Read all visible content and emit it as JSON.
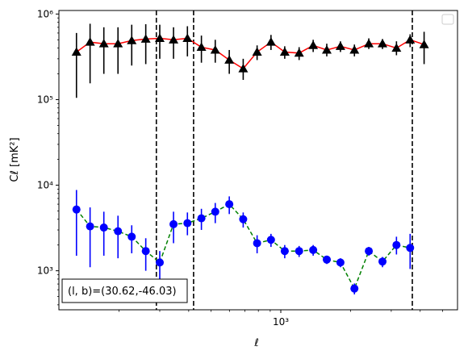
{
  "chart_data": {
    "type": "scatter",
    "title": "",
    "xlabel": "ℓ",
    "ylabel": "Cℓ  [mK²]",
    "xscale": "log",
    "yscale": "log",
    "xlim": [
      110,
      5800
    ],
    "ylim": [
      350,
      1100000
    ],
    "x_tick_labels": [
      {
        "value": 1000,
        "label": "10³"
      }
    ],
    "y_tick_labels": [
      {
        "value": 1000,
        "label": "10³"
      },
      {
        "value": 10000,
        "label": "10⁴"
      },
      {
        "value": 100000,
        "label": "10⁵"
      },
      {
        "value": 1000000,
        "label": "10⁶"
      }
    ],
    "x_minor_ticks": [
      200,
      300,
      400,
      500,
      600,
      700,
      800,
      900,
      2000,
      3000,
      4000,
      5000
    ],
    "vertical_lines": [
      290,
      420,
      3700
    ],
    "legend": {
      "placement": "top-right",
      "entries": []
    },
    "annotation": "(l, b)=(30.62,-46.03)",
    "series": [
      {
        "marker": "triangle",
        "marker_color": "#000000",
        "line_color": "#ff0000",
        "line_style": "solid",
        "points": [
          {
            "x": 131,
            "y": 360000,
            "yerr_low": 105000,
            "yerr_high": 600000
          },
          {
            "x": 150,
            "y": 470000,
            "yerr_low": 155000,
            "yerr_high": 770000
          },
          {
            "x": 172,
            "y": 450000,
            "yerr_low": 200000,
            "yerr_high": 700000
          },
          {
            "x": 198,
            "y": 450000,
            "yerr_low": 200000,
            "yerr_high": 700000
          },
          {
            "x": 227,
            "y": 490000,
            "yerr_low": 250000,
            "yerr_high": 750000
          },
          {
            "x": 261,
            "y": 510000,
            "yerr_low": 260000,
            "yerr_high": 760000
          },
          {
            "x": 300,
            "y": 520000,
            "yerr_low": 300000,
            "yerr_high": 750000
          },
          {
            "x": 344,
            "y": 500000,
            "yerr_low": 300000,
            "yerr_high": 700000
          },
          {
            "x": 395,
            "y": 520000,
            "yerr_low": 320000,
            "yerr_high": 720000
          },
          {
            "x": 454,
            "y": 410000,
            "yerr_low": 270000,
            "yerr_high": 560000
          },
          {
            "x": 521,
            "y": 380000,
            "yerr_low": 270000,
            "yerr_high": 500000
          },
          {
            "x": 599,
            "y": 290000,
            "yerr_low": 200000,
            "yerr_high": 380000
          },
          {
            "x": 688,
            "y": 230000,
            "yerr_low": 170000,
            "yerr_high": 300000
          },
          {
            "x": 790,
            "y": 360000,
            "yerr_low": 290000,
            "yerr_high": 430000
          },
          {
            "x": 907,
            "y": 470000,
            "yerr_low": 380000,
            "yerr_high": 570000
          },
          {
            "x": 1040,
            "y": 360000,
            "yerr_low": 300000,
            "yerr_high": 420000
          },
          {
            "x": 1200,
            "y": 350000,
            "yerr_low": 290000,
            "yerr_high": 410000
          },
          {
            "x": 1380,
            "y": 430000,
            "yerr_low": 360000,
            "yerr_high": 500000
          },
          {
            "x": 1580,
            "y": 380000,
            "yerr_low": 320000,
            "yerr_high": 450000
          },
          {
            "x": 1810,
            "y": 420000,
            "yerr_low": 360000,
            "yerr_high": 480000
          },
          {
            "x": 2080,
            "y": 380000,
            "yerr_low": 320000,
            "yerr_high": 440000
          },
          {
            "x": 2400,
            "y": 450000,
            "yerr_low": 390000,
            "yerr_high": 520000
          },
          {
            "x": 2750,
            "y": 450000,
            "yerr_low": 390000,
            "yerr_high": 510000
          },
          {
            "x": 3160,
            "y": 400000,
            "yerr_low": 330000,
            "yerr_high": 480000
          },
          {
            "x": 3620,
            "y": 500000,
            "yerr_low": 410000,
            "yerr_high": 580000
          },
          {
            "x": 4160,
            "y": 440000,
            "yerr_low": 260000,
            "yerr_high": 620000
          }
        ]
      },
      {
        "marker": "circle",
        "marker_color": "#0000ff",
        "line_color": "#008000",
        "line_style": "dashed",
        "points": [
          {
            "x": 131,
            "y": 5200,
            "yerr_low": 1500,
            "yerr_high": 8800
          },
          {
            "x": 150,
            "y": 3300,
            "yerr_low": 1100,
            "yerr_high": 5500
          },
          {
            "x": 172,
            "y": 3200,
            "yerr_low": 1500,
            "yerr_high": 4900
          },
          {
            "x": 198,
            "y": 2900,
            "yerr_low": 1400,
            "yerr_high": 4400
          },
          {
            "x": 227,
            "y": 2500,
            "yerr_low": 1600,
            "yerr_high": 3400
          },
          {
            "x": 261,
            "y": 1700,
            "yerr_low": 1000,
            "yerr_high": 2400
          },
          {
            "x": 300,
            "y": 1250,
            "yerr_low": 800,
            "yerr_high": 1700
          },
          {
            "x": 344,
            "y": 3500,
            "yerr_low": 2100,
            "yerr_high": 4900
          },
          {
            "x": 395,
            "y": 3600,
            "yerr_low": 2600,
            "yerr_high": 4800
          },
          {
            "x": 454,
            "y": 4100,
            "yerr_low": 3000,
            "yerr_high": 5300
          },
          {
            "x": 521,
            "y": 4900,
            "yerr_low": 3600,
            "yerr_high": 6200
          },
          {
            "x": 599,
            "y": 6000,
            "yerr_low": 4600,
            "yerr_high": 7400
          },
          {
            "x": 688,
            "y": 4000,
            "yerr_low": 3200,
            "yerr_high": 4800
          },
          {
            "x": 790,
            "y": 2100,
            "yerr_low": 1600,
            "yerr_high": 2600
          },
          {
            "x": 907,
            "y": 2300,
            "yerr_low": 1900,
            "yerr_high": 2700
          },
          {
            "x": 1040,
            "y": 1700,
            "yerr_low": 1400,
            "yerr_high": 2000
          },
          {
            "x": 1200,
            "y": 1700,
            "yerr_low": 1450,
            "yerr_high": 1950
          },
          {
            "x": 1380,
            "y": 1750,
            "yerr_low": 1500,
            "yerr_high": 2000
          },
          {
            "x": 1580,
            "y": 1350,
            "yerr_low": 1200,
            "yerr_high": 1500
          },
          {
            "x": 1810,
            "y": 1250,
            "yerr_low": 1100,
            "yerr_high": 1400
          },
          {
            "x": 2080,
            "y": 620,
            "yerr_low": 530,
            "yerr_high": 710
          },
          {
            "x": 2400,
            "y": 1700,
            "yerr_low": 1500,
            "yerr_high": 1900
          },
          {
            "x": 2750,
            "y": 1280,
            "yerr_low": 1100,
            "yerr_high": 1450
          },
          {
            "x": 3160,
            "y": 2000,
            "yerr_low": 1550,
            "yerr_high": 2500
          },
          {
            "x": 3620,
            "y": 1850,
            "yerr_low": 1050,
            "yerr_high": 2700
          }
        ]
      }
    ]
  }
}
